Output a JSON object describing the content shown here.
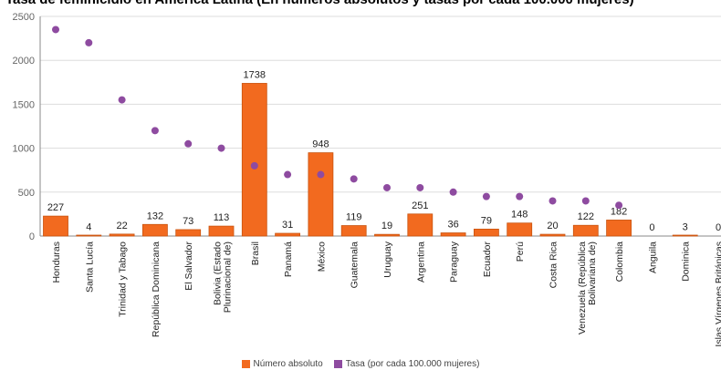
{
  "title": "Tasa de feminicidio en América Latina (En números absolutos y tasas por cada 100.000 mujeres)",
  "colors": {
    "bar": "#F26A1F",
    "bar_border": "#C9530E",
    "dot": "#8E4BA0",
    "grid": "#DDDDDD",
    "axis": "#888888"
  },
  "chart_data": {
    "type": "bar",
    "title": "Tasa de feminicidio en América Latina (En números absolutos y tasas por cada 100.000 mujeres)",
    "categories": [
      "Honduras",
      "Santa Lucía",
      "Trinidad y Tabago",
      "República Dominicana",
      "El Salvador",
      "Bolivia (Estado Plurinacional de)",
      "Brasil",
      "Panamá",
      "México",
      "Guatemala",
      "Uruguay",
      "Argentina",
      "Paraguay",
      "Ecuador",
      "Perú",
      "Costa Rica",
      "Venezuela (República Bolivariana de)",
      "Colombia",
      "Anguila",
      "Dominica",
      "Islas Vírgenes Británicas"
    ],
    "ylim": [
      0,
      2500
    ],
    "yticks": [
      0,
      500,
      1000,
      1500,
      2000,
      2500
    ],
    "grid": true,
    "legend_position": "bottom",
    "series": [
      {
        "name": "Número absoluto",
        "type": "bar",
        "values": [
          227,
          4,
          22,
          132,
          73,
          113,
          1738,
          31,
          948,
          119,
          19,
          251,
          36,
          79,
          148,
          20,
          122,
          182,
          0,
          3,
          0
        ],
        "value_labels": [
          "227",
          "4",
          "22",
          "132",
          "73",
          "113",
          "1738",
          "31",
          "948",
          "119",
          "19",
          "251",
          "36",
          "79",
          "148",
          "20",
          "122",
          "182",
          "0",
          "3",
          "0"
        ]
      },
      {
        "name": "Tasa (por cada 100.000 mujeres)",
        "type": "scatter",
        "values": [
          2350,
          2200,
          1550,
          1200,
          1050,
          1000,
          800,
          700,
          700,
          650,
          550,
          550,
          500,
          450,
          450,
          400,
          400,
          350,
          null,
          null,
          null
        ]
      }
    ]
  }
}
